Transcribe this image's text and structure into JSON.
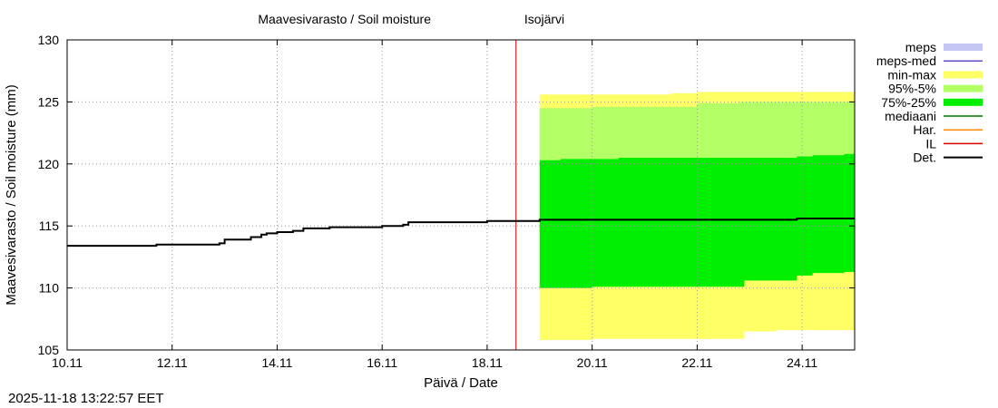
{
  "chart_data": {
    "type": "area",
    "title": "Maavesivarasto / Soil moisture",
    "station": "Isojärvi",
    "xlabel": "Päivä / Date",
    "ylabel": "Maavesivarasto / Soil moisture (mm)",
    "xlim": [
      10.0,
      25.0
    ],
    "ylim": [
      105,
      130
    ],
    "x_unit": "days of November",
    "x_ticks": [
      {
        "value": 10,
        "label": "10.11"
      },
      {
        "value": 12,
        "label": "12.11"
      },
      {
        "value": 14,
        "label": "14.11"
      },
      {
        "value": 16,
        "label": "16.11"
      },
      {
        "value": 18,
        "label": "18.11"
      },
      {
        "value": 20,
        "label": "20.11"
      },
      {
        "value": 22,
        "label": "22.11"
      },
      {
        "value": 24,
        "label": "24.11"
      }
    ],
    "y_ticks": [
      105,
      110,
      115,
      120,
      125,
      130
    ],
    "grid": true,
    "legend": [
      {
        "key": "meps",
        "label": "meps",
        "kind": "box",
        "color": "#c6c6f5"
      },
      {
        "key": "meps_med",
        "label": "meps-med",
        "kind": "line",
        "color": "#5a4fc7"
      },
      {
        "key": "min_max",
        "label": "min-max",
        "kind": "box",
        "color": "#ffff66"
      },
      {
        "key": "p95_5",
        "label": "95%-5%",
        "kind": "box",
        "color": "#b3ff66"
      },
      {
        "key": "p75_25",
        "label": "75%-25%",
        "kind": "box",
        "color": "#00ee00"
      },
      {
        "key": "mediaani",
        "label": "mediaani",
        "kind": "line",
        "color": "#007700"
      },
      {
        "key": "har",
        "label": "Har.",
        "kind": "line",
        "color": "#ff8800"
      },
      {
        "key": "il",
        "label": "IL",
        "kind": "line",
        "color": "#dd0000"
      },
      {
        "key": "det",
        "label": "Det.",
        "kind": "line",
        "color": "#000000"
      }
    ],
    "current_time_line": {
      "x": 18.55,
      "color": "#cc0000"
    },
    "forecast_bands": {
      "x": [
        19.0,
        19.4,
        20.0,
        20.5,
        21.0,
        21.5,
        22.0,
        22.8,
        22.9,
        23.5,
        23.9,
        24.2,
        24.8,
        25.0
      ],
      "min": [
        105.8,
        105.8,
        105.9,
        105.9,
        105.9,
        105.9,
        105.9,
        105.9,
        106.5,
        106.6,
        106.6,
        106.6,
        106.6,
        106.6
      ],
      "p5": [
        110.0,
        110.0,
        110.1,
        110.1,
        110.1,
        110.1,
        110.1,
        110.1,
        110.6,
        110.6,
        111.0,
        111.2,
        111.3,
        111.4
      ],
      "p25": [
        110.0,
        110.0,
        110.1,
        110.1,
        110.1,
        110.1,
        110.1,
        110.1,
        110.6,
        110.6,
        111.0,
        111.2,
        111.3,
        111.4
      ],
      "p75": [
        120.3,
        120.4,
        120.4,
        120.5,
        120.5,
        120.5,
        120.5,
        120.5,
        120.5,
        120.5,
        120.6,
        120.7,
        120.8,
        120.9
      ],
      "p95": [
        124.5,
        124.5,
        124.6,
        124.6,
        124.6,
        124.6,
        124.9,
        125.0,
        125.0,
        125.0,
        125.0,
        125.0,
        125.0,
        125.0
      ],
      "max": [
        125.6,
        125.6,
        125.6,
        125.6,
        125.6,
        125.7,
        125.8,
        125.8,
        125.8,
        125.8,
        125.8,
        125.8,
        125.8,
        125.8
      ]
    },
    "det_series": {
      "x": [
        10.0,
        11.6,
        11.7,
        12.0,
        12.4,
        12.9,
        13.0,
        13.5,
        13.7,
        13.8,
        14.0,
        14.1,
        14.3,
        14.5,
        15.0,
        15.5,
        16.0,
        16.2,
        16.4,
        16.5,
        17.0,
        18.0,
        18.55,
        19.0,
        20.0,
        21.0,
        22.0,
        23.0,
        23.9,
        25.0
      ],
      "y": [
        113.4,
        113.4,
        113.5,
        113.5,
        113.5,
        113.6,
        113.9,
        114.1,
        114.3,
        114.4,
        114.5,
        114.5,
        114.6,
        114.8,
        114.9,
        114.9,
        115.0,
        115.0,
        115.1,
        115.3,
        115.3,
        115.4,
        115.4,
        115.5,
        115.5,
        115.5,
        115.5,
        115.5,
        115.6,
        115.6
      ]
    }
  },
  "footer": {
    "timestamp": "2025-11-18 13:22:57 EET"
  }
}
